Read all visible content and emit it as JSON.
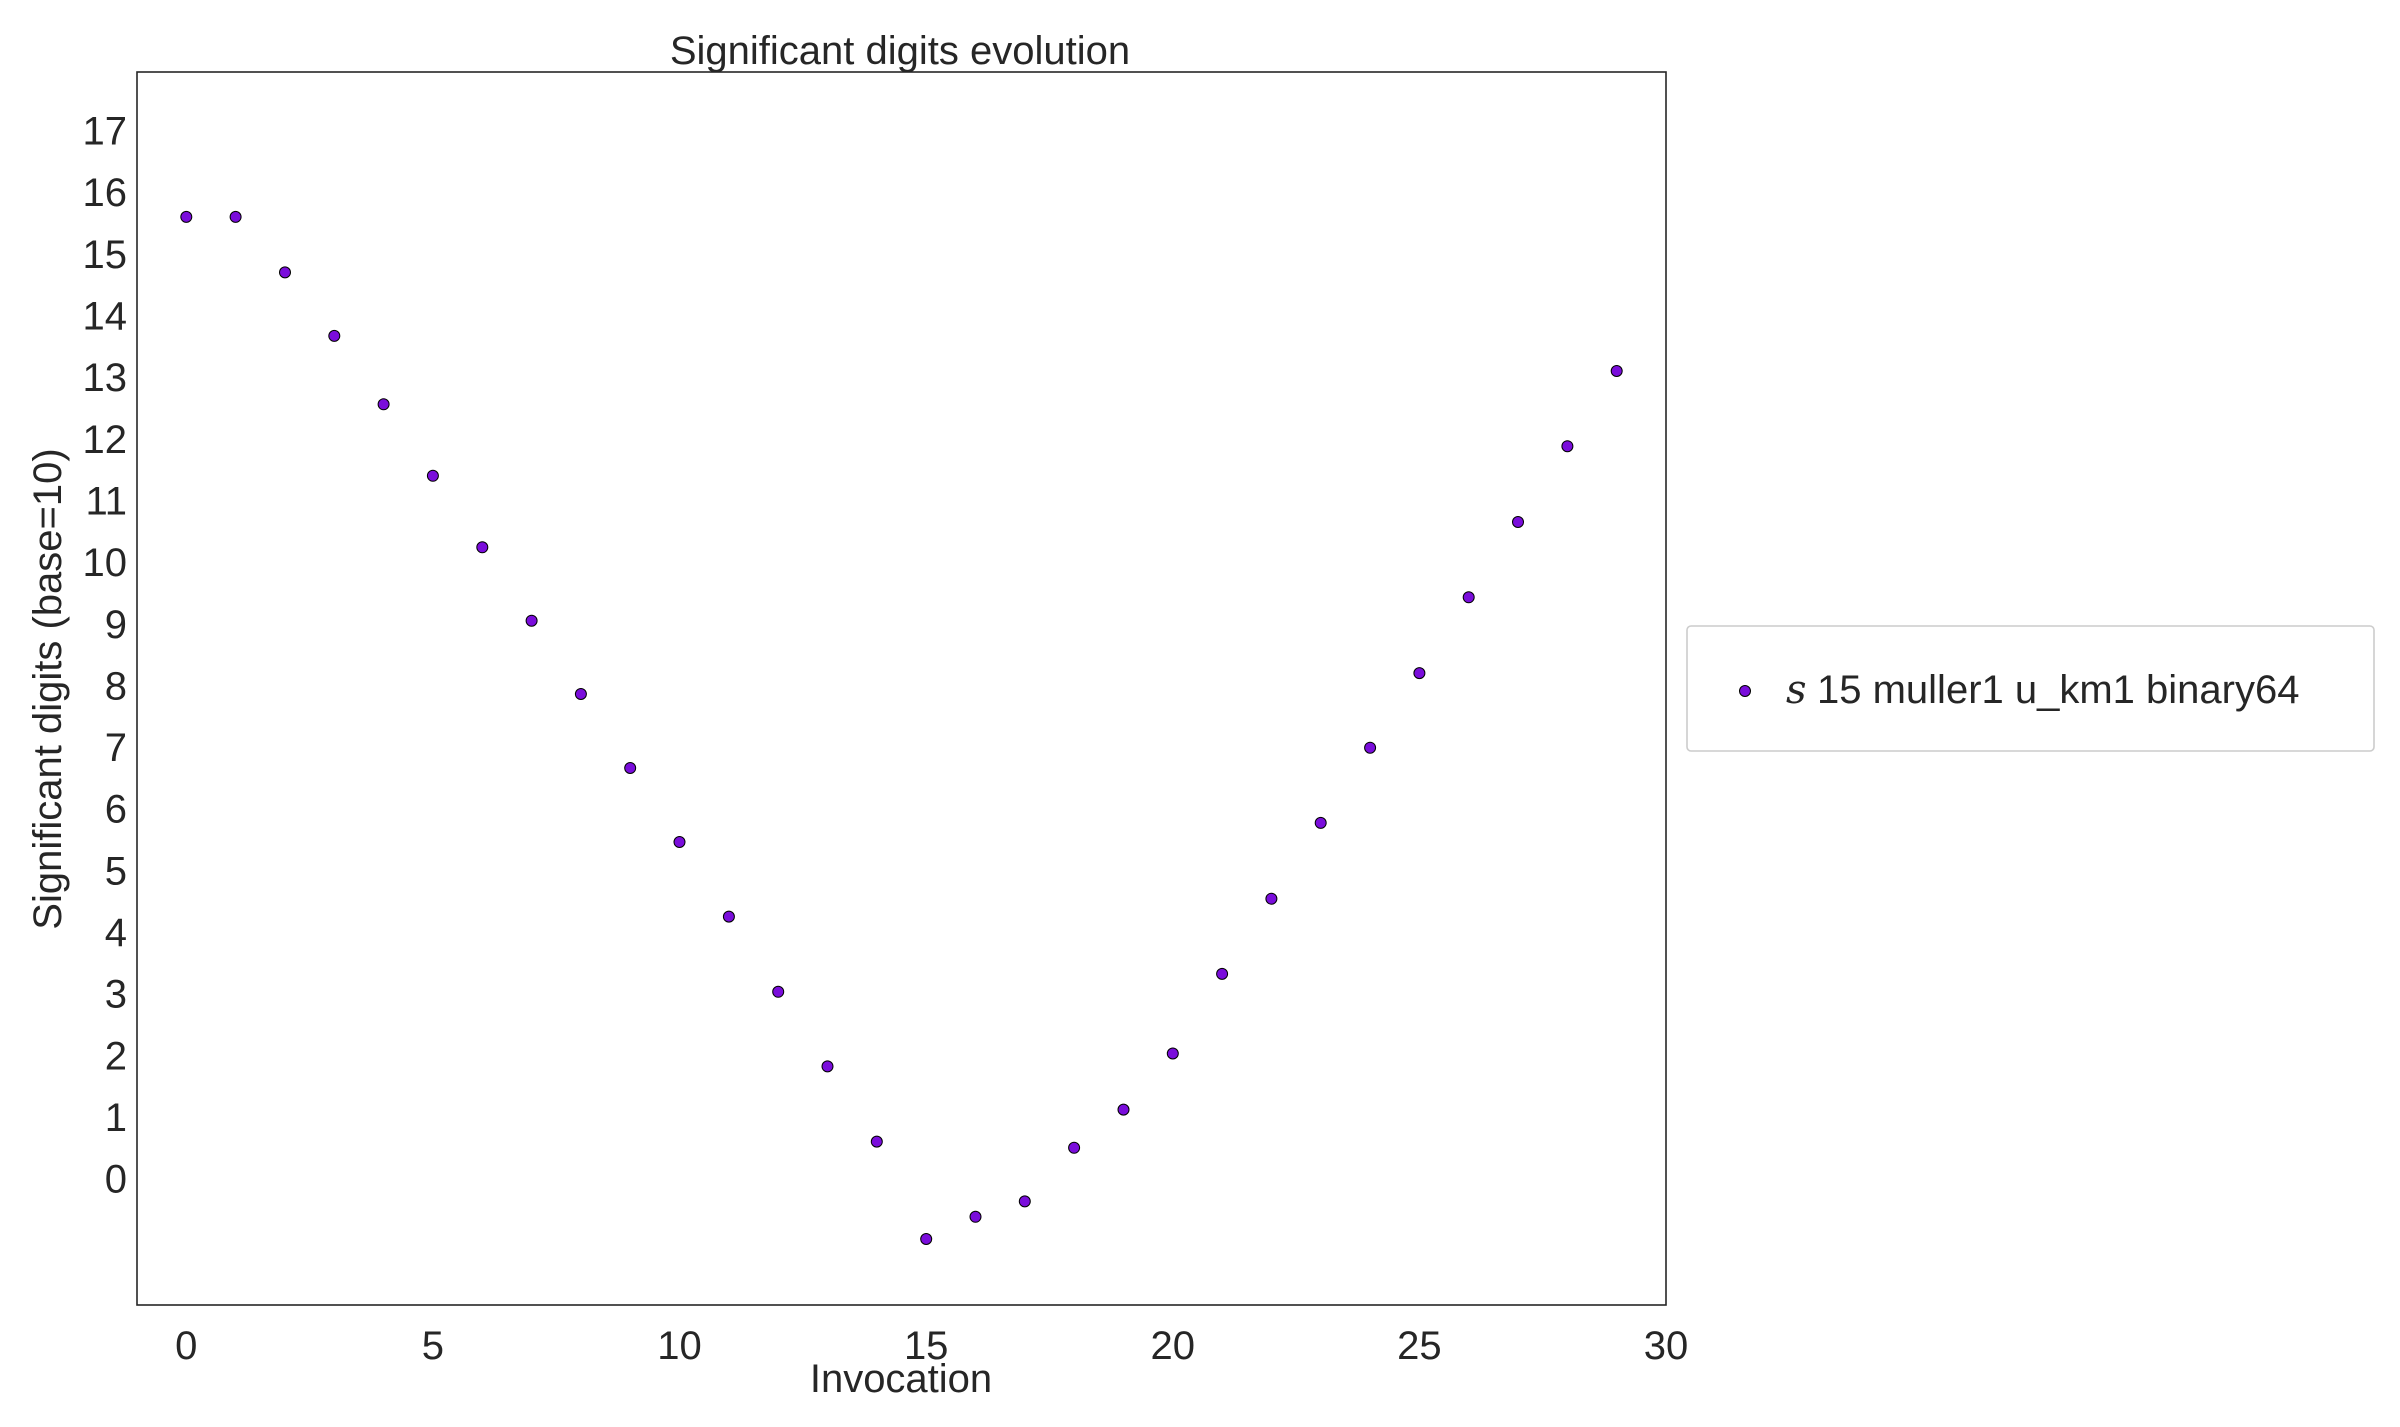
{
  "chart_data": {
    "type": "scatter",
    "title": "Significant digits evolution",
    "xlabel": "Invocation",
    "ylabel": "Significant digits (base=10)",
    "xlim": [
      -1,
      30
    ],
    "ylim": [
      -2.05,
      17.95
    ],
    "xticks": [
      0,
      5,
      10,
      15,
      20,
      25,
      30
    ],
    "xtick_labels": [
      "0",
      "5",
      "10",
      "15",
      "20",
      "25",
      "30"
    ],
    "yticks": [
      0,
      1,
      2,
      3,
      4,
      5,
      6,
      7,
      8,
      9,
      10,
      11,
      12,
      13,
      14,
      15,
      16,
      17
    ],
    "ytick_labels": [
      "0",
      "1",
      "2",
      "3",
      "4",
      "5",
      "6",
      "7",
      "8",
      "9",
      "10",
      "11",
      "12",
      "13",
      "14",
      "15",
      "16",
      "17"
    ],
    "grid": false,
    "legend": "outside-right",
    "series": [
      {
        "name": "15 muller1 u_km1 binary64",
        "symbol": "s",
        "color": "#7a0ddb",
        "edge_color": "#000000",
        "x": [
          0,
          1,
          2,
          3,
          4,
          5,
          6,
          7,
          8,
          9,
          10,
          11,
          12,
          13,
          14,
          15,
          16,
          17,
          18,
          19,
          20,
          21,
          22,
          23,
          24,
          25,
          26,
          27,
          28,
          29
        ],
        "y": [
          15.6,
          15.6,
          14.7,
          13.67,
          12.56,
          11.4,
          10.24,
          9.05,
          7.86,
          6.66,
          5.46,
          4.25,
          3.03,
          1.82,
          0.6,
          -0.98,
          -0.62,
          -0.37,
          0.5,
          1.12,
          2.03,
          3.32,
          4.54,
          5.77,
          6.99,
          8.2,
          9.43,
          10.65,
          11.88,
          13.1
        ]
      }
    ]
  }
}
